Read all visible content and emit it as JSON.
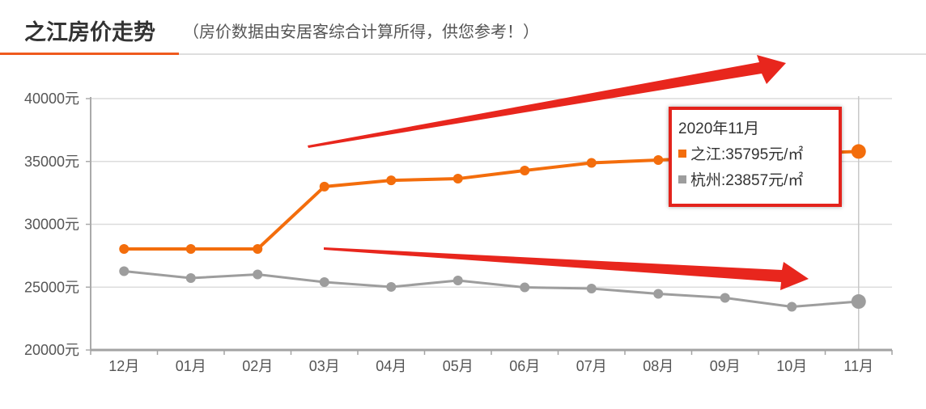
{
  "colors": {
    "accent": "#ef5a1e",
    "tooltip_border": "#e3231c",
    "annotation_arrow": "#e8261d"
  },
  "chart_data": {
    "type": "line",
    "title": "之江房价走势",
    "subtitle": "（房价数据由安居客综合计算所得，供您参考！）",
    "categories": [
      "12月",
      "01月",
      "02月",
      "03月",
      "04月",
      "05月",
      "06月",
      "07月",
      "08月",
      "09月",
      "10月",
      "11月"
    ],
    "ylim": [
      20000,
      40000
    ],
    "y_ticks": [
      20000,
      25000,
      30000,
      35000,
      40000
    ],
    "y_tick_labels": [
      "20000元",
      "25000元",
      "30000元",
      "35000元",
      "40000元"
    ],
    "grid": true,
    "series": [
      {
        "name": "之江",
        "color": "#f36d0c",
        "values": [
          28040,
          28040,
          28040,
          33000,
          33500,
          33630,
          34280,
          34890,
          35110,
          35350,
          35600,
          35795
        ]
      },
      {
        "name": "杭州",
        "color": "#9d9d9d",
        "values": [
          26270,
          25720,
          26010,
          25400,
          25020,
          25530,
          24980,
          24890,
          24470,
          24150,
          23440,
          23857
        ]
      }
    ],
    "tooltip": {
      "category_index": 11,
      "title": "2020年11月",
      "separator": ":",
      "unit": "元/㎡",
      "rows": [
        {
          "value": "35795"
        },
        {
          "value": "23857"
        }
      ]
    }
  }
}
